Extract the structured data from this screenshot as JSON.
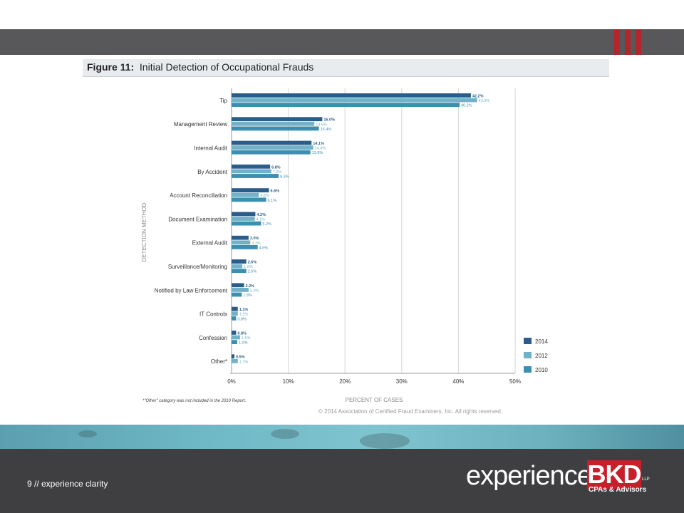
{
  "slide": {
    "figure_label": "Figure 11:",
    "figure_title": "Initial Detection of Occupational Frauds",
    "footnote": "*\"Other\" category was not included in the 2010 Report.",
    "copyright": "© 2014 Association of Certified Fraud Examiners, Inc. All rights reserved.",
    "page_number": "9 // experience clarity",
    "brand_word": "experience",
    "brand_mark": "BKD",
    "brand_llp": "LLP",
    "brand_tagline": "CPAs & Advisors"
  },
  "colors": {
    "topbar": "#58585a",
    "accent_red": "#b3262c",
    "footer": "#3f3f41",
    "series_2014": "#2b5d8a",
    "series_2012": "#72b2c9",
    "series_2010": "#3b8fb0"
  },
  "chart_data": {
    "type": "bar",
    "orientation": "horizontal",
    "title": "Initial Detection of Occupational Frauds",
    "xlabel": "PERCENT OF CASES",
    "ylabel": "DETECTION METHOD",
    "xlim": [
      0,
      50
    ],
    "xticks": [
      "0%",
      "10%",
      "20%",
      "30%",
      "40%",
      "50%"
    ],
    "grid": true,
    "legend_position": "bottom-right",
    "categories": [
      "Tip",
      "Management Review",
      "Internal Audit",
      "By Accident",
      "Account Reconciliation",
      "Document Examination",
      "External Audit",
      "Surveillance/Monitoring",
      "Notified by Law Enforcement",
      "IT Controls",
      "Confession",
      "Other*"
    ],
    "series": [
      {
        "name": "2014",
        "color": "#2b5d8a",
        "values": [
          42.2,
          16.0,
          14.1,
          6.8,
          6.6,
          4.2,
          3.0,
          2.6,
          2.2,
          1.1,
          0.8,
          0.5
        ],
        "labels": [
          "42.2%",
          "16.0%",
          "14.1%",
          "6.8%",
          "6.6%",
          "4.2%",
          "3.0%",
          "2.6%",
          "2.2%",
          "1.1%",
          "0.8%",
          "0.5%"
        ]
      },
      {
        "name": "2012",
        "color": "#72b2c9",
        "values": [
          43.3,
          14.6,
          14.4,
          7.0,
          4.8,
          4.1,
          3.3,
          1.9,
          3.0,
          1.1,
          1.5,
          1.1
        ],
        "labels": [
          "43.3%",
          "14.6%",
          "14.4%",
          "7.0%",
          "4.8%",
          "4.1%",
          "3.3%",
          "1.9%",
          "3.0%",
          "1.1%",
          "1.5%",
          "1.1%"
        ]
      },
      {
        "name": "2010",
        "color": "#3b8fb0",
        "values": [
          40.2,
          15.4,
          13.9,
          8.3,
          6.1,
          5.2,
          4.6,
          2.6,
          1.8,
          0.8,
          1.0,
          null
        ],
        "labels": [
          "40.2%",
          "15.4%",
          "13.9%",
          "8.3%",
          "6.1%",
          "5.2%",
          "4.6%",
          "2.6%",
          "1.8%",
          "0.8%",
          "1.0%",
          null
        ]
      }
    ]
  }
}
